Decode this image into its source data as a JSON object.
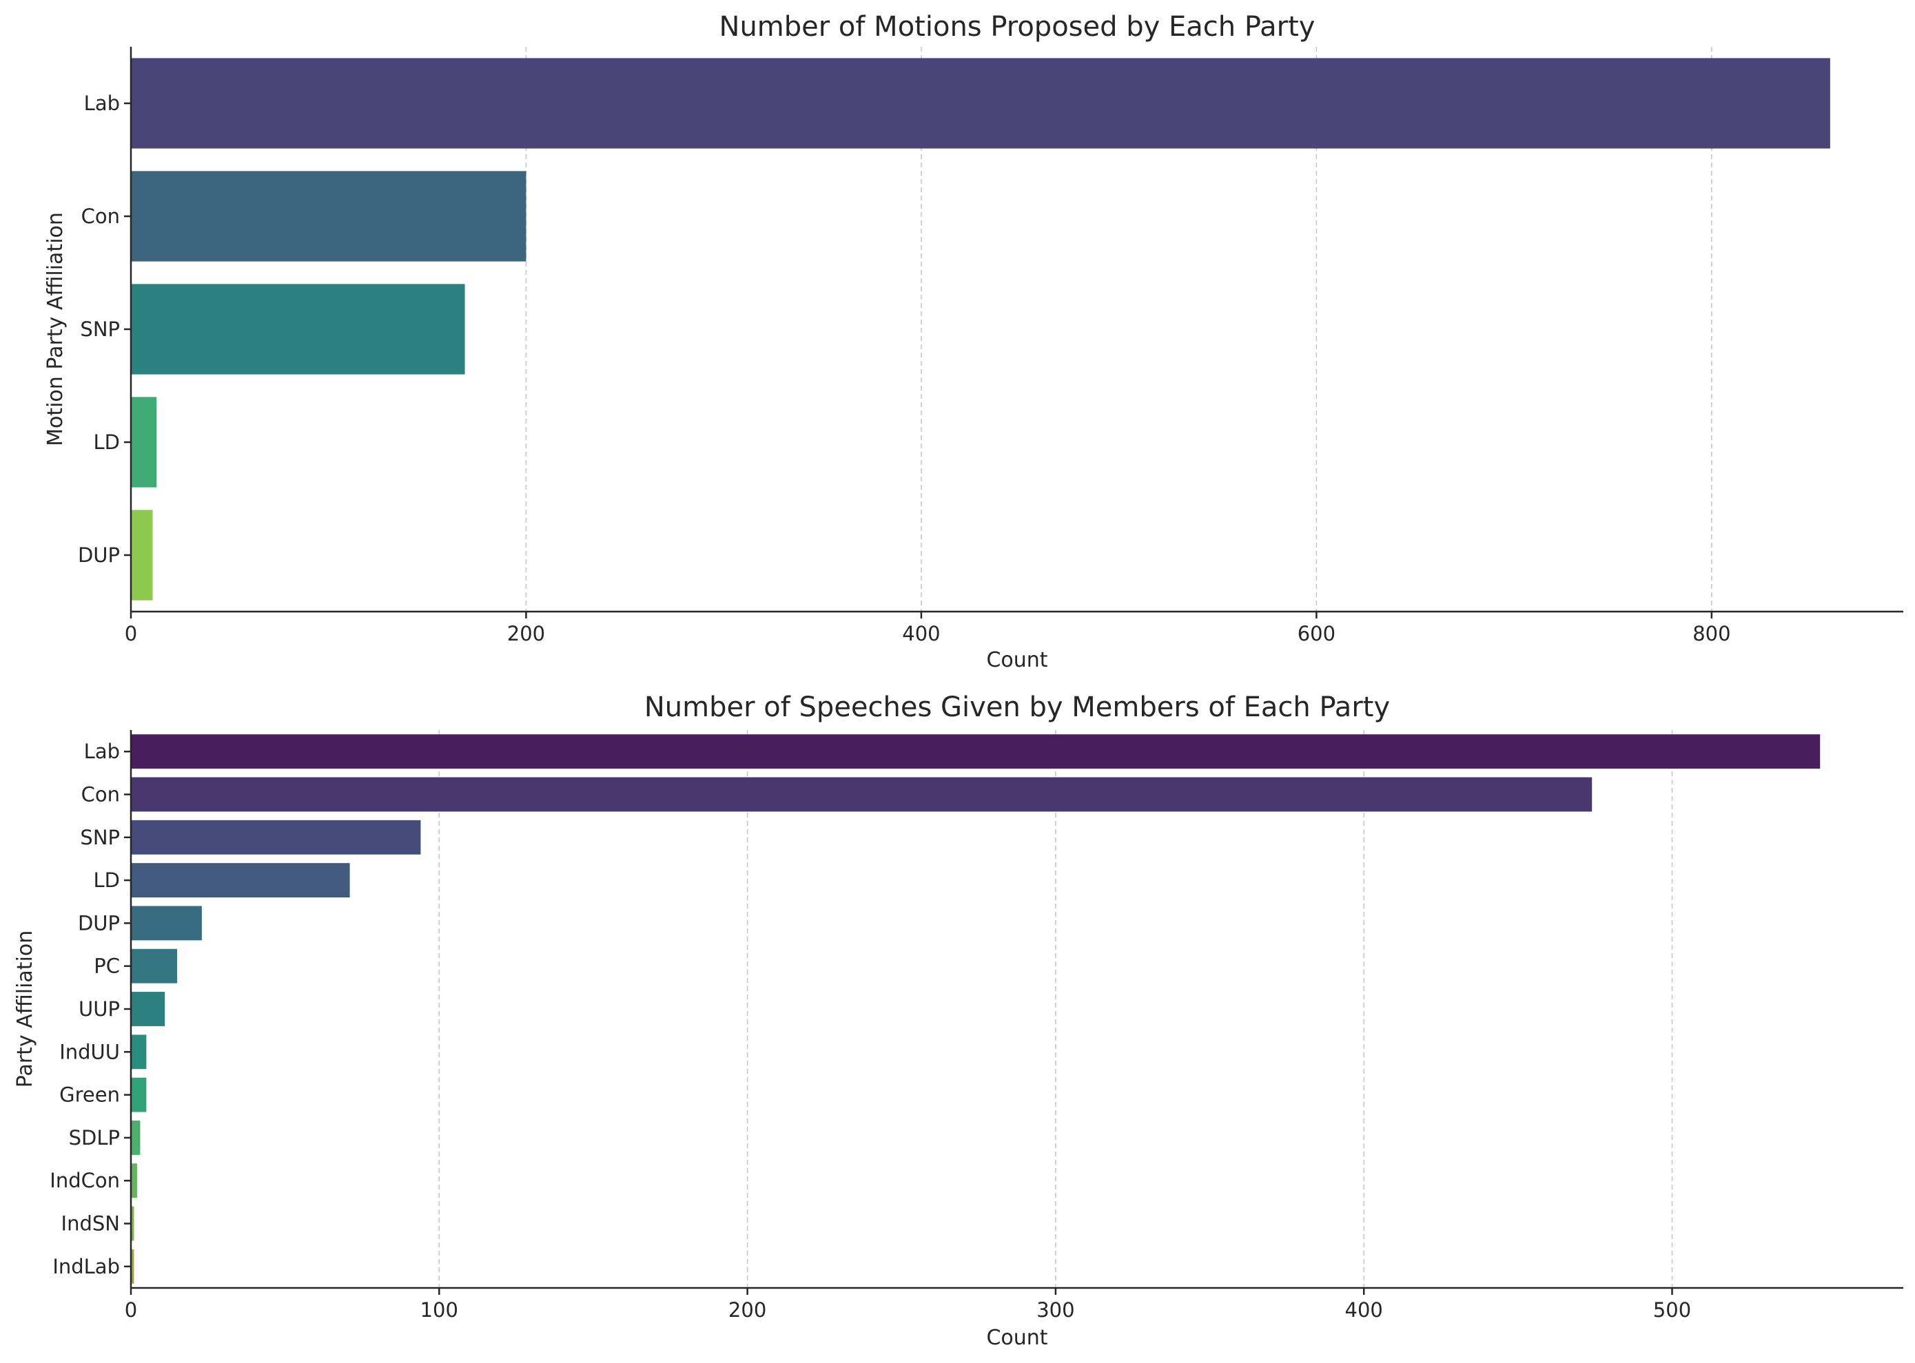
{
  "chart_data": [
    {
      "type": "bar",
      "orientation": "horizontal",
      "title": "Number of Motions Proposed by Each Party",
      "xlabel": "Count",
      "ylabel": "Motion Party Affiliation",
      "categories": [
        "Lab",
        "Con",
        "SNP",
        "LD",
        "DUP"
      ],
      "values": [
        860,
        200,
        169,
        13,
        11
      ],
      "xlim": [
        0,
        897
      ],
      "xticks": [
        0,
        200,
        400,
        600,
        800
      ],
      "grid": "x",
      "colors": [
        "#4b4479",
        "#3d657f",
        "#2b817f",
        "#3fab74",
        "#8dc94e"
      ]
    },
    {
      "type": "bar",
      "orientation": "horizontal",
      "title": "Number of Speeches Given by Members of Each Party",
      "xlabel": "Count",
      "ylabel": "Party Affiliation",
      "categories": [
        "Lab",
        "Con",
        "SNP",
        "LD",
        "DUP",
        "PC",
        "UUP",
        "IndUU",
        "Green",
        "SDLP",
        "IndCon",
        "IndSN",
        "IndLab"
      ],
      "values": [
        548,
        474,
        94,
        71,
        23,
        15,
        11,
        5,
        5,
        3,
        2,
        1,
        1
      ],
      "xlim": [
        0,
        575
      ],
      "xticks": [
        0,
        100,
        200,
        300,
        400,
        500
      ],
      "grid": "x",
      "colors": [
        "#481e5e",
        "#49386f",
        "#454c7c",
        "#415a7e",
        "#396c80",
        "#337580",
        "#2c8080",
        "#2a8c7f",
        "#31a277",
        "#4bb06d",
        "#66b45f",
        "#86b14c",
        "#a5a742"
      ]
    }
  ]
}
